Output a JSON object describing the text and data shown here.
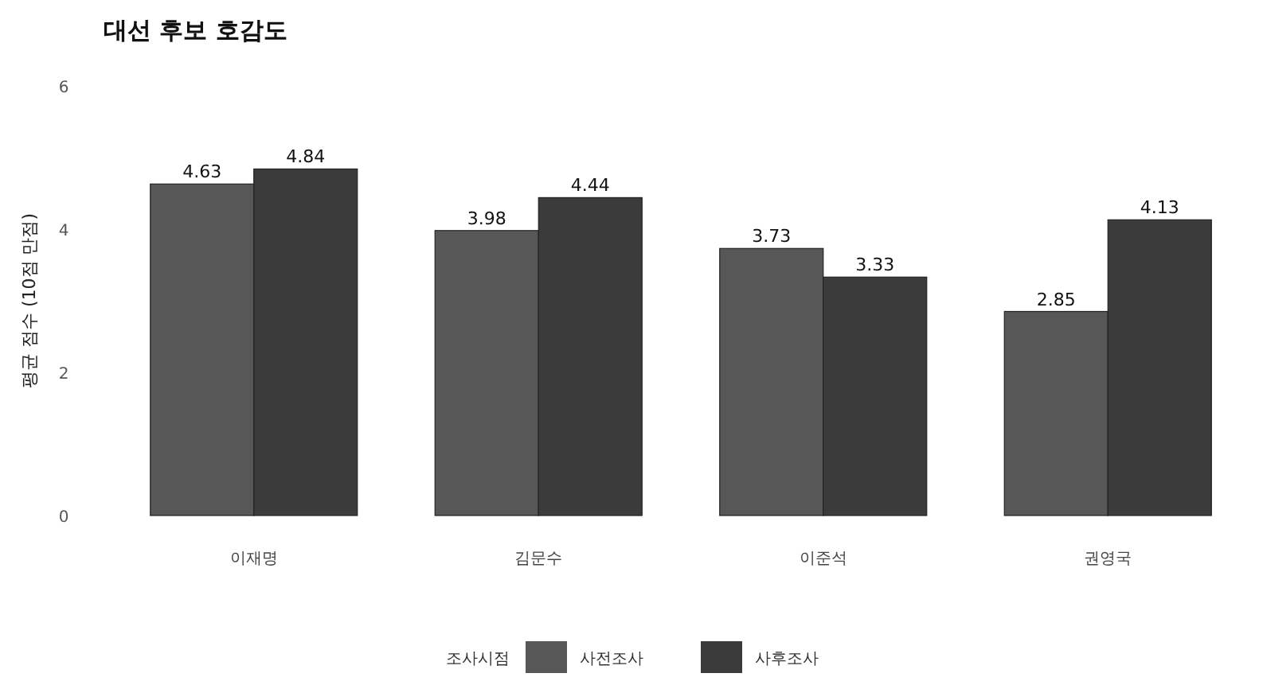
{
  "chart_data": {
    "type": "bar",
    "title": "대선 후보 호감도",
    "ylabel": "평균 점수 (10점 만점)",
    "legend_title": "조사시점",
    "categories": [
      "이재명",
      "김문수",
      "이준석",
      "권영국"
    ],
    "series": [
      {
        "name": "사전조사",
        "color": "#575757",
        "values": [
          4.63,
          3.98,
          3.73,
          2.85
        ]
      },
      {
        "name": "사후조사",
        "color": "#3b3b3b",
        "values": [
          4.84,
          4.44,
          3.33,
          4.13
        ]
      }
    ],
    "ylim": [
      0,
      6
    ],
    "yticks": [
      0,
      2,
      4,
      6
    ],
    "data_labels": true,
    "legend": "bottom",
    "grid": false
  }
}
